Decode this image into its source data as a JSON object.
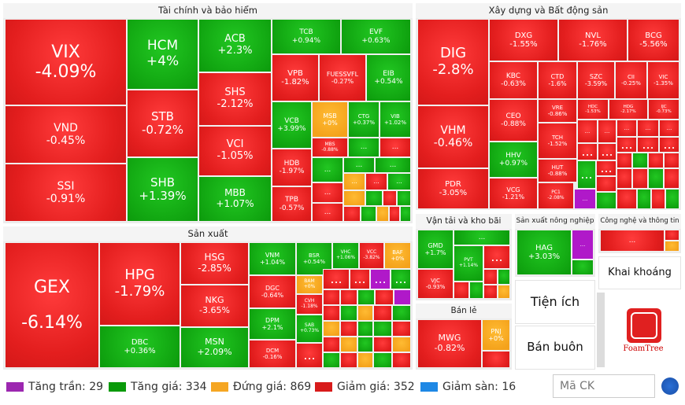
{
  "sections": {
    "finance": "Tài chính và bảo hiểm",
    "construction": "Xây dựng và Bất động sản",
    "manufacturing": "Sản xuất",
    "transport": "Vận tải và kho bãi",
    "agri": "Sản xuất nông nghiệp",
    "tech": "Công nghệ và thông tin",
    "mining": "Khai khoáng",
    "retail": "Bán lẻ",
    "utilities": "Tiện ích",
    "wholesale": "Bán buôn"
  },
  "tiles": {
    "VIX": {
      "s": "VIX",
      "v": "-4.09%"
    },
    "VND": {
      "s": "VND",
      "v": "-0.45%"
    },
    "SSI": {
      "s": "SSI",
      "v": "-0.91%"
    },
    "HCM": {
      "s": "HCM",
      "v": "+4%"
    },
    "STB": {
      "s": "STB",
      "v": "-0.72%"
    },
    "SHB": {
      "s": "SHB",
      "v": "+1.39%"
    },
    "ACB": {
      "s": "ACB",
      "v": "+2.3%"
    },
    "SHS": {
      "s": "SHS",
      "v": "-2.12%"
    },
    "VCI": {
      "s": "VCI",
      "v": "-1.05%"
    },
    "MBB": {
      "s": "MBB",
      "v": "+1.07%"
    },
    "TCB": {
      "s": "TCB",
      "v": "+0.94%"
    },
    "EVF": {
      "s": "EVF",
      "v": "+0.63%"
    },
    "VPB": {
      "s": "VPB",
      "v": "-1.82%"
    },
    "FUESSVFL": {
      "s": "FUESSVFL",
      "v": "-0.27%"
    },
    "EIB": {
      "s": "EIB",
      "v": "+0.54%"
    },
    "VCB": {
      "s": "VCB",
      "v": "+3.99%"
    },
    "MSB": {
      "s": "MSB",
      "v": "+0%"
    },
    "CTG": {
      "s": "CTG",
      "v": "+0.37%"
    },
    "VIB": {
      "s": "VIB",
      "v": "+1.02%"
    },
    "MBS": {
      "s": "MBS",
      "v": "-0.88%"
    },
    "HDB": {
      "s": "HDB",
      "v": "-1.97%"
    },
    "TPB": {
      "s": "TPB",
      "v": "-0.57%"
    },
    "DIG": {
      "s": "DIG",
      "v": "-2.8%"
    },
    "VHM": {
      "s": "VHM",
      "v": "-0.46%"
    },
    "PDR": {
      "s": "PDR",
      "v": "-3.05%"
    },
    "DXG": {
      "s": "DXG",
      "v": "-1.55%"
    },
    "NVL": {
      "s": "NVL",
      "v": "-1.76%"
    },
    "BCG": {
      "s": "BCG",
      "v": "-5.56%"
    },
    "KBC": {
      "s": "KBC",
      "v": "-0.63%"
    },
    "CTD": {
      "s": "CTD",
      "v": "-1.6%"
    },
    "SZC": {
      "s": "SZC",
      "v": "-3.59%"
    },
    "CII": {
      "s": "CII",
      "v": "-0.25%"
    },
    "VIC": {
      "s": "VIC",
      "v": "-1.35%"
    },
    "VRE": {
      "s": "VRE",
      "v": "-0.86%"
    },
    "HDC": {
      "s": "HDC",
      "v": "-1.53%"
    },
    "HDG": {
      "s": "HDG",
      "v": "-2.17%"
    },
    "IJC": {
      "s": "IJC",
      "v": "-0.73%"
    },
    "CEO": {
      "s": "CEO",
      "v": "-0.88%"
    },
    "TCH": {
      "s": "TCH",
      "v": "-1.52%"
    },
    "HUT": {
      "s": "HUT",
      "v": "-0.88%"
    },
    "HHV": {
      "s": "HHV",
      "v": "+0.97%"
    },
    "VCG": {
      "s": "VCG",
      "v": "-1.21%"
    },
    "PC1": {
      "s": "PC1",
      "v": "-2.08%"
    },
    "GEX": {
      "s": "GEX",
      "v": "-6.14%"
    },
    "HPG": {
      "s": "HPG",
      "v": "-1.79%"
    },
    "DBC": {
      "s": "DBC",
      "v": "+0.36%"
    },
    "HSG": {
      "s": "HSG",
      "v": "-2.85%"
    },
    "NKG": {
      "s": "NKG",
      "v": "-3.65%"
    },
    "MSN": {
      "s": "MSN",
      "v": "+2.09%"
    },
    "VNM": {
      "s": "VNM",
      "v": "+1.04%"
    },
    "BSR": {
      "s": "BSR",
      "v": "+0.54%"
    },
    "VHC": {
      "s": "VHC",
      "v": "+1.06%"
    },
    "VCC": {
      "s": "VCC",
      "v": "-3.82%"
    },
    "BAF": {
      "s": "BAF",
      "v": "+0%"
    },
    "DGC": {
      "s": "DGC",
      "v": "-0.64%"
    },
    "BAM": {
      "s": "BAM",
      "v": "+0%"
    },
    "CVH": {
      "s": "CVH",
      "v": "-1.18%"
    },
    "DPM": {
      "s": "DPM",
      "v": "+2.1%"
    },
    "SAB": {
      "s": "SAB",
      "v": "+0.73%"
    },
    "DCM": {
      "s": "DCM",
      "v": "-0.16%"
    },
    "GMD": {
      "s": "GMD",
      "v": "+1.7%"
    },
    "PVT": {
      "s": "PVT",
      "v": "+1.14%"
    },
    "VJC": {
      "s": "VJC",
      "v": "-0.93%"
    },
    "HAG": {
      "s": "HAG",
      "v": "+3.03%"
    },
    "MWG": {
      "s": "MWG",
      "v": "-0.82%"
    },
    "PNJ": {
      "s": "PNJ",
      "v": "+0%"
    }
  },
  "dots": "...",
  "legend": {
    "ceiling": "Tăng trần: 29",
    "up": "Tăng giá: 334",
    "flat": "Đứng giá: 869",
    "down": "Giảm giá: 352",
    "floor": "Giảm sàn: 16",
    "colors": {
      "ceiling": "#9c27b0",
      "up": "#0a9a0a",
      "flat": "#f5a623",
      "down": "#d81b1b",
      "floor": "#1e88e5"
    }
  },
  "search": {
    "placeholder": "Mã CK"
  },
  "foamtree": "FoamTree"
}
